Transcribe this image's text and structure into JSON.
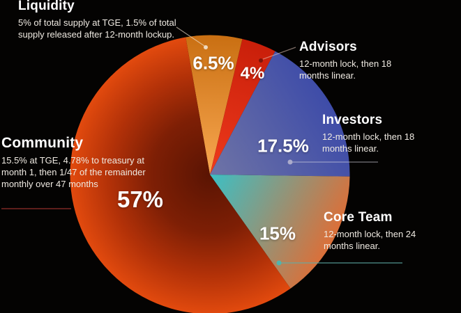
{
  "background_color": "#040302",
  "chart_data": {
    "type": "pie",
    "title": "",
    "direction": "clockwise",
    "start_angle_deg": -10,
    "legend_position": "callouts-around-pie",
    "slices": [
      {
        "name": "Liquidity",
        "value": 6.5,
        "value_label": "6.5%",
        "description": "5% of total supply at TGE, 1.5% of total supply released after 12-month lockup.",
        "gradient": "linear",
        "color_inner": "#F9A851",
        "color_outer": "#C96F12"
      },
      {
        "name": "Advisors",
        "value": 4,
        "value_label": "4%",
        "description": "12-month lock, then 18 months linear.",
        "gradient": "linear",
        "color_inner": "#EE3A1C",
        "color_outer": "#C91F0A"
      },
      {
        "name": "Investors",
        "value": 17.5,
        "value_label": "17.5%",
        "description": "12-month lock, then 18 months linear.",
        "gradient": "linear",
        "color_inner": "#6F74A6",
        "color_outer": "#3E4CA8"
      },
      {
        "name": "Core Team",
        "value": 15,
        "value_label": "15%",
        "description": "12-month lock, then 24 months linear.",
        "gradient": "linear",
        "color_inner": "#3BC0C5",
        "color_outer": "#DC6F38"
      },
      {
        "name": "Community",
        "value": 57,
        "value_label": "57%",
        "description": "15.5% at TGE, 4.78% to treasury at month 1, then 1/47 of the remainder monthly over 47 months",
        "gradient": "radial",
        "color_inner": "#5A1403",
        "color_mid": "#7E1F05",
        "color_outer": "#E24A0E"
      }
    ]
  }
}
